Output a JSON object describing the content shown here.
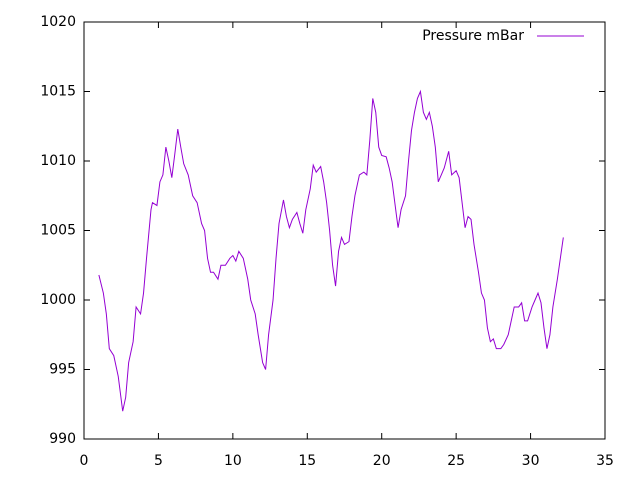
{
  "chart_data": {
    "type": "line",
    "x": [
      1.0,
      1.3,
      1.5,
      1.7,
      2.0,
      2.3,
      2.6,
      2.8,
      3.0,
      3.3,
      3.5,
      3.8,
      4.0,
      4.2,
      4.5,
      4.6,
      4.9,
      5.1,
      5.3,
      5.5,
      5.7,
      5.9,
      6.1,
      6.3,
      6.5,
      6.7,
      7.0,
      7.3,
      7.6,
      7.9,
      8.1,
      8.3,
      8.5,
      8.7,
      9.0,
      9.2,
      9.5,
      9.8,
      10.0,
      10.2,
      10.4,
      10.7,
      11.0,
      11.2,
      11.5,
      11.7,
      12.0,
      12.2,
      12.4,
      12.7,
      12.9,
      13.1,
      13.4,
      13.6,
      13.8,
      14.0,
      14.3,
      14.5,
      14.7,
      14.9,
      15.2,
      15.4,
      15.6,
      15.9,
      16.1,
      16.3,
      16.5,
      16.7,
      16.9,
      17.1,
      17.3,
      17.5,
      17.8,
      18.0,
      18.2,
      18.5,
      18.8,
      19.0,
      19.2,
      19.4,
      19.6,
      19.8,
      20.0,
      20.3,
      20.5,
      20.7,
      21.0,
      21.1,
      21.3,
      21.6,
      21.8,
      22.0,
      22.2,
      22.4,
      22.6,
      22.8,
      23.0,
      23.2,
      23.4,
      23.6,
      23.8,
      24.0,
      24.2,
      24.5,
      24.7,
      25.0,
      25.2,
      25.4,
      25.6,
      25.8,
      26.0,
      26.2,
      26.5,
      26.7,
      26.9,
      27.1,
      27.3,
      27.5,
      27.7,
      28.0,
      28.2,
      28.5,
      28.7,
      28.9,
      29.2,
      29.4,
      29.6,
      29.8,
      30.1,
      30.3,
      30.5,
      30.7,
      30.9,
      31.1,
      31.3,
      31.5,
      31.8,
      32.0,
      32.2
    ],
    "series": [
      {
        "name": "Pressure mBar",
        "color": "#9400d3",
        "values": [
          1001.8,
          1000.5,
          999,
          996.5,
          996,
          994.5,
          992,
          993,
          995.5,
          997,
          999.5,
          999,
          1000.5,
          1003,
          1006.5,
          1007,
          1006.8,
          1008.5,
          1009,
          1011,
          1010,
          1008.8,
          1010.5,
          1012.3,
          1011,
          1009.8,
          1009,
          1007.5,
          1007,
          1005.5,
          1005,
          1003,
          1002,
          1002,
          1001.5,
          1002.5,
          1002.5,
          1003,
          1003.2,
          1002.8,
          1003.5,
          1003,
          1001.5,
          1000,
          999,
          997.5,
          995.5,
          995,
          997.5,
          1000,
          1003,
          1005.5,
          1007.2,
          1006,
          1005.2,
          1005.8,
          1006.3,
          1005.5,
          1004.8,
          1006.5,
          1008,
          1009.7,
          1009.2,
          1009.6,
          1008.5,
          1007,
          1005,
          1002.5,
          1001,
          1003.5,
          1004.5,
          1004,
          1004.2,
          1006,
          1007.5,
          1009,
          1009.2,
          1009,
          1011.5,
          1014.5,
          1013.5,
          1011,
          1010.4,
          1010.3,
          1009.5,
          1008.5,
          1006,
          1005.2,
          1006.5,
          1007.5,
          1010,
          1012.2,
          1013.5,
          1014.5,
          1015,
          1013.5,
          1013,
          1013.5,
          1012.5,
          1011,
          1008.5,
          1009,
          1009.5,
          1010.7,
          1009,
          1009.3,
          1008.8,
          1007,
          1005.2,
          1006,
          1005.8,
          1004,
          1002,
          1000.5,
          1000,
          998,
          997,
          997.2,
          996.5,
          996.5,
          996.8,
          997.5,
          998.5,
          999.5,
          999.5,
          999.8,
          998.5,
          998.5,
          999.5,
          1000,
          1000.5,
          999.8,
          998,
          996.5,
          997.5,
          999.5,
          1001.5,
          1003,
          1004.5
        ]
      }
    ],
    "xlim": [
      0,
      35
    ],
    "xticks": [
      0,
      5,
      10,
      15,
      20,
      25,
      30,
      35
    ],
    "ylim": [
      990,
      1020
    ],
    "yticks": [
      990,
      995,
      1000,
      1005,
      1010,
      1015,
      1020
    ],
    "legend": "upper right"
  }
}
